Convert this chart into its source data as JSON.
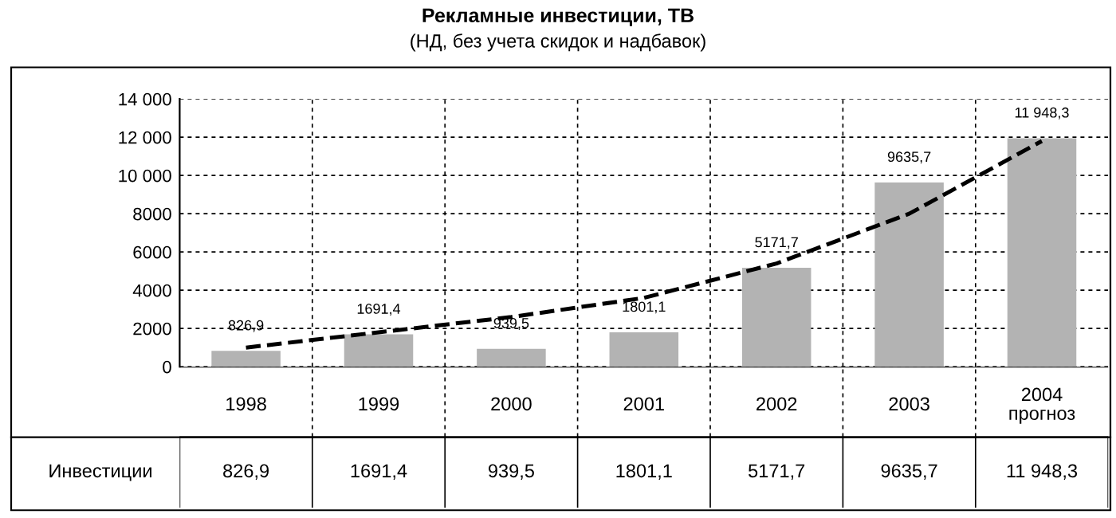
{
  "chart_data": {
    "type": "bar",
    "title": "Рекламные инвестиции, ТВ",
    "subtitle": "(НД, без учета скидок и надбавок)",
    "categories": [
      "1998",
      "1999",
      "2000",
      "2001",
      "2002",
      "2003",
      "2004\nпрогноз"
    ],
    "series": [
      {
        "name": "Инвестиции",
        "color": "#b3b3b3",
        "values": [
          826.9,
          1691.4,
          939.5,
          1801.1,
          5171.7,
          9635.7,
          11948.3
        ],
        "value_labels": [
          "826,9",
          "1691,4",
          "939,5",
          "1801,1",
          "5171,7",
          "9635,7",
          "11 948,3"
        ]
      },
      {
        "type": "line",
        "color": "#000000",
        "line_style": "dashed",
        "values": [
          1000,
          1800,
          2600,
          3600,
          5400,
          8000,
          11800
        ]
      }
    ],
    "ylim": [
      0,
      14000
    ],
    "yticks": [
      0,
      2000,
      4000,
      6000,
      8000,
      {
        "value": 10000,
        "label": "10 000"
      },
      {
        "value": 12000,
        "label": "12 000"
      },
      {
        "value": 14000,
        "label": "14 000"
      }
    ],
    "grid": "y"
  }
}
